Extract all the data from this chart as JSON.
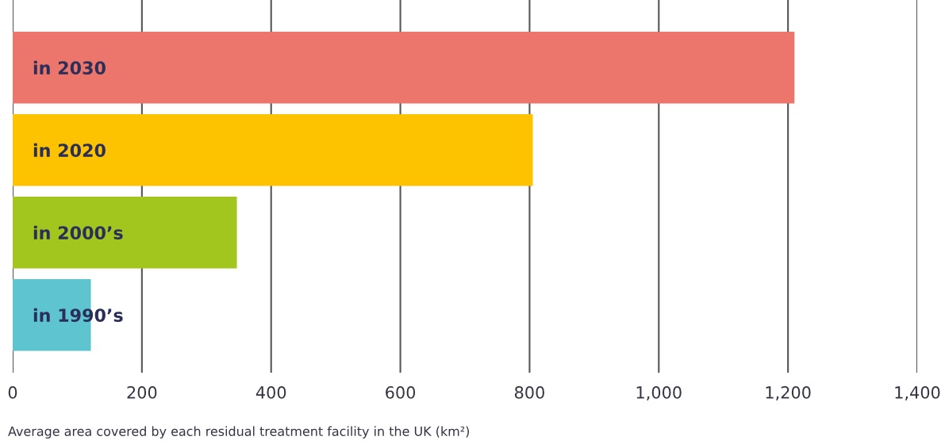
{
  "chart_data": {
    "type": "bar",
    "orientation": "horizontal",
    "categories": [
      "in 2030",
      "in 2020",
      "in 2000’s",
      "in 1990’s"
    ],
    "values": [
      1210,
      805,
      347,
      121
    ],
    "colors": [
      "#ec766b",
      "#fdc300",
      "#a2c61e",
      "#5ec4d0"
    ],
    "xlim": [
      0,
      1400
    ],
    "xticks": [
      0,
      200,
      400,
      600,
      800,
      {
        "value": 1000,
        "label": "1,000"
      },
      {
        "value": 1200,
        "label": "1,200"
      },
      {
        "value": 1400,
        "label": "1,400"
      }
    ],
    "xlabel": "Average area covered by each residual treatment facility in the UK (km²)",
    "grid": "x"
  }
}
